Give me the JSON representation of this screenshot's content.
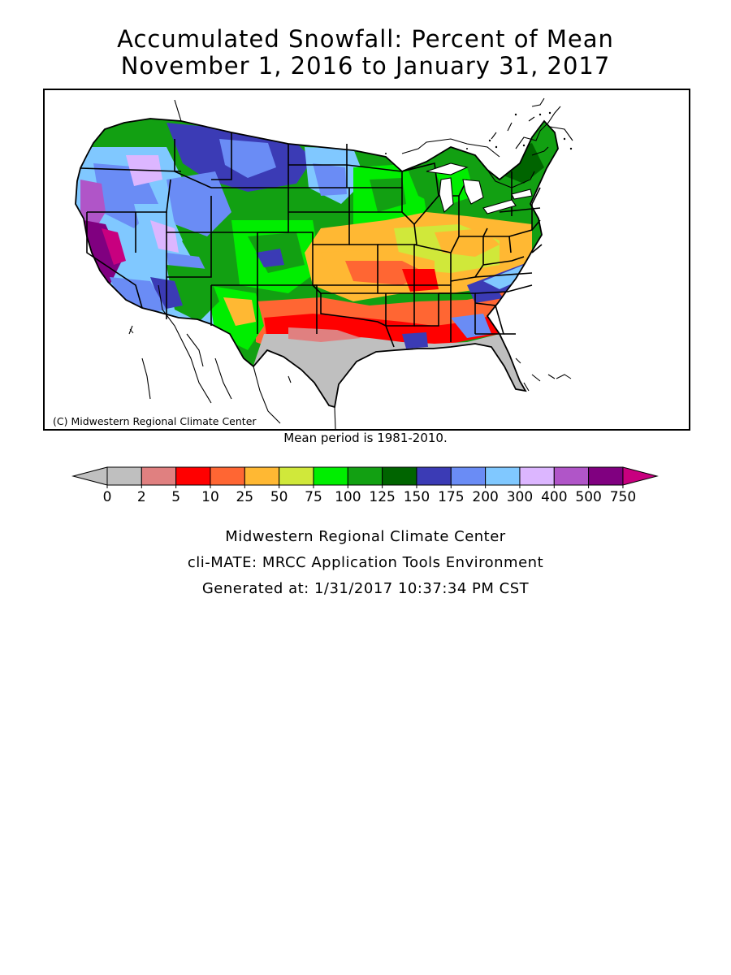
{
  "title_line1": "Accumulated Snowfall: Percent of Mean",
  "title_line2": "November 1, 2016 to January 31, 2017",
  "copyright": "(C) Midwestern Regional Climate Center",
  "mean_period": "Mean period is 1981-2010.",
  "legend": {
    "labels": [
      "0",
      "2",
      "5",
      "10",
      "25",
      "50",
      "75",
      "100",
      "125",
      "150",
      "175",
      "200",
      "300",
      "400",
      "500",
      "750"
    ],
    "below_color": "#c0c0c0",
    "above_color": "#c8007f",
    "colors": [
      "#bfbfbf",
      "#e08080",
      "#ff0000",
      "#ff6633",
      "#ffb833",
      "#d0e83a",
      "#00ee00",
      "#12a012",
      "#006400",
      "#3b3bb5",
      "#6a8cf5",
      "#80c8ff",
      "#dcb6ff",
      "#b055c8",
      "#800080"
    ]
  },
  "footer": {
    "line1": "Midwestern Regional Climate Center",
    "line2": "cli-MATE: MRCC Application Tools Environment",
    "line3": "Generated at: 1/31/2017 10:37:34 PM CST"
  }
}
